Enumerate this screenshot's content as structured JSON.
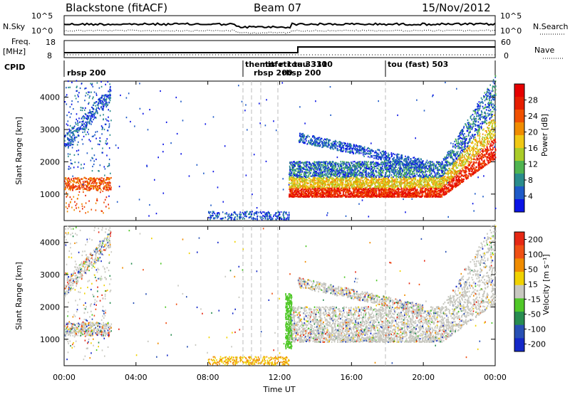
{
  "header": {
    "station": "Blackstone (fitACF)",
    "beam": "Beam 07",
    "date": "15/Nov/2012"
  },
  "labels": {
    "nsky": "N.Sky",
    "nsky_ticks": [
      "10^5",
      "10^0"
    ],
    "nsearch": "N.Search",
    "nsearch_ticks": [
      "10^5",
      "10^0"
    ],
    "freq": "Freq.",
    "freq_unit": "[MHz]",
    "freq_ticks": [
      "18",
      "8"
    ],
    "nave_ticks": [
      "60",
      "0"
    ],
    "nave": "Nave",
    "cpid": "CPID",
    "xlabel": "Time UT"
  },
  "cpid_segments": [
    "rbsp 200",
    "themis",
    "rbsp 200",
    "tu",
    "tfe",
    "rti",
    "tou 3310",
    "tau 3310",
    "rbsp 200",
    "tou (fast) 503"
  ],
  "chart_data": [
    {
      "type": "heatmap",
      "quantity": "power",
      "xlabel": "Time UT",
      "ylabel": "Slant Range [km]",
      "xlim": [
        0,
        24
      ],
      "ylim": [
        180,
        4500
      ],
      "x_ticks": [
        "00:00",
        "04:00",
        "08:00",
        "12:00",
        "16:00",
        "20:00",
        "00:00"
      ],
      "y_ticks": [
        1000,
        2000,
        3000,
        4000
      ],
      "colorbar": {
        "label": "Power [dB]",
        "ticks": [
          4,
          8,
          12,
          16,
          20,
          24,
          28
        ],
        "colors": [
          "#0a14e6",
          "#1e5ac8",
          "#2a8c8c",
          "#50b450",
          "#aacc28",
          "#f0c814",
          "#f08c00",
          "#f05000",
          "#e61e00",
          "#e60000"
        ]
      }
    },
    {
      "type": "heatmap",
      "quantity": "velocity",
      "xlabel": "Time UT",
      "ylabel": "Slant Range [km]",
      "xlim": [
        0,
        24
      ],
      "ylim": [
        180,
        4500
      ],
      "x_ticks": [
        "00:00",
        "04:00",
        "08:00",
        "12:00",
        "16:00",
        "20:00",
        "00:00"
      ],
      "y_ticks": [
        1000,
        2000,
        3000,
        4000
      ],
      "colorbar": {
        "label": "Velocity [m s⁻¹]",
        "ticks": [
          200,
          100,
          50,
          15,
          -15,
          -50,
          -100,
          -200
        ],
        "colors": [
          "#1428c8",
          "#2850b4",
          "#288c50",
          "#50c828",
          "#c8c8c0",
          "#f0d200",
          "#f08c00",
          "#f05014",
          "#e62814"
        ]
      }
    }
  ],
  "colors": {
    "frame": "#000000",
    "gray": "#c8c8c0"
  }
}
